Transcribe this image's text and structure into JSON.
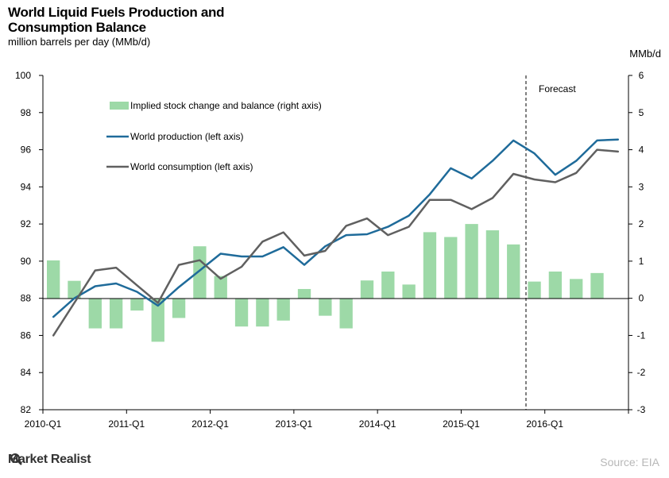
{
  "header": {
    "title": "World Liquid Fuels Production and Consumption Balance",
    "subtitle": "million barrels per day (MMb/d)",
    "right_unit": "MMb/d"
  },
  "footer": {
    "brand": "Market Realist",
    "source": "Source: EIA"
  },
  "colors": {
    "production": "#1f6b9a",
    "consumption": "#606060",
    "stock_bars": "#9dd9a7",
    "forecast_line": "#000000"
  },
  "chart_data": {
    "type": "bar+line",
    "title": "World Liquid Fuels Production and Consumption Balance",
    "subtitle": "million barrels per day (MMb/d)",
    "x": [
      "2010-Q1",
      "2010-Q2",
      "2010-Q3",
      "2010-Q4",
      "2011-Q1",
      "2011-Q2",
      "2011-Q3",
      "2011-Q4",
      "2012-Q1",
      "2012-Q2",
      "2012-Q3",
      "2012-Q4",
      "2013-Q1",
      "2013-Q2",
      "2013-Q3",
      "2013-Q4",
      "2014-Q1",
      "2014-Q2",
      "2014-Q3",
      "2014-Q4",
      "2015-Q1",
      "2015-Q2",
      "2015-Q3",
      "2015-Q4",
      "2016-Q1",
      "2016-Q2",
      "2016-Q3",
      "2016-Q4"
    ],
    "x_tick_labels": [
      "2010-Q1",
      "2011-Q1",
      "2012-Q1",
      "2013-Q1",
      "2014-Q1",
      "2015-Q1",
      "2016-Q1"
    ],
    "left_axis": {
      "ylim": [
        82,
        100
      ],
      "ticks": [
        82,
        84,
        86,
        88,
        90,
        92,
        94,
        96,
        98,
        100
      ]
    },
    "right_axis": {
      "label": "MMb/d",
      "ylim": [
        -3,
        6
      ],
      "ticks": [
        -3,
        -2,
        -1,
        0,
        1,
        2,
        3,
        4,
        5,
        6
      ]
    },
    "series": [
      {
        "name": "Implied stock change and balance (right axis)",
        "type": "bar",
        "axis": "right",
        "values": [
          1.02,
          0.47,
          -0.81,
          -0.81,
          -0.33,
          -1.17,
          -0.53,
          1.4,
          0.6,
          -0.76,
          -0.76,
          -0.6,
          0.25,
          -0.47,
          -0.81,
          0.48,
          0.72,
          0.37,
          1.78,
          1.65,
          2.0,
          1.83,
          1.45,
          0.45,
          0.72,
          0.52,
          0.68,
          0.0
        ]
      },
      {
        "name": "World production (left axis)",
        "type": "line",
        "axis": "left",
        "values": [
          87.0,
          88.0,
          88.65,
          88.8,
          88.35,
          87.6,
          88.6,
          89.5,
          90.4,
          90.25,
          90.25,
          90.75,
          89.8,
          90.8,
          91.4,
          91.45,
          91.85,
          92.45,
          93.6,
          95.0,
          94.45,
          95.4,
          96.5,
          95.8,
          94.65,
          95.4,
          96.5,
          96.55
        ]
      },
      {
        "name": "World consumption (left axis)",
        "type": "line",
        "axis": "left",
        "values": [
          86.0,
          87.75,
          89.5,
          89.65,
          88.7,
          87.75,
          89.8,
          90.05,
          89.05,
          89.7,
          91.05,
          91.55,
          90.3,
          90.55,
          91.9,
          92.3,
          91.4,
          91.85,
          93.3,
          93.3,
          92.8,
          93.4,
          94.7,
          94.4,
          94.25,
          94.75,
          96.0,
          95.9
        ]
      }
    ],
    "annotations": [
      {
        "text": "Forecast",
        "position": "after 2015-Q3"
      }
    ],
    "legend": "top-left",
    "grid": false
  }
}
